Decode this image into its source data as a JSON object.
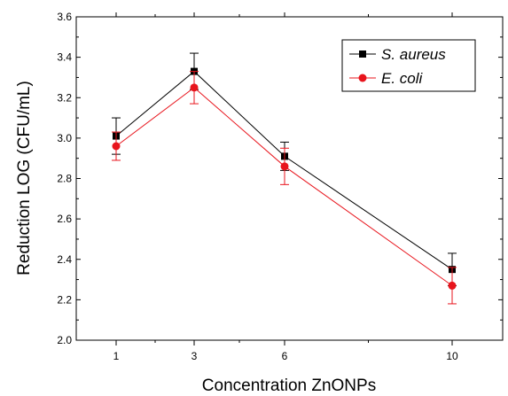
{
  "chart_data": {
    "type": "line",
    "title": "",
    "xlabel": "Concentration ZnONPs",
    "ylabel": "Reduction LOG (CFU/mL)",
    "x_categories": [
      "1",
      "3",
      "6",
      "10"
    ],
    "ylim": [
      2.0,
      3.6
    ],
    "y_ticks": [
      "2.0",
      "2.2",
      "2.4",
      "2.6",
      "2.8",
      "3.0",
      "3.2",
      "3.4",
      "3.6"
    ],
    "grid": false,
    "legend_position": "top-right",
    "series": [
      {
        "name": "S. aureus",
        "color": "#000000",
        "marker": "square",
        "values": [
          3.01,
          3.33,
          2.91,
          2.35
        ],
        "errors": [
          0.09,
          0.09,
          0.07,
          0.08
        ]
      },
      {
        "name": "E. coli",
        "color": "#e8141c",
        "marker": "circle",
        "values": [
          2.96,
          3.25,
          2.86,
          2.27
        ],
        "errors": [
          0.07,
          0.08,
          0.09,
          0.09
        ]
      }
    ]
  }
}
